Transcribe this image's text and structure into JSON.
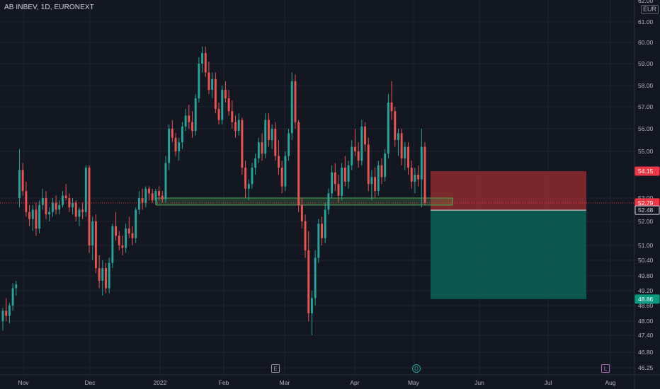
{
  "header": {
    "title": "AB INBEV, 1D, EURONEXT",
    "currency": "EUR"
  },
  "chart_data": {
    "type": "candlestick",
    "symbol": "AB INBEV",
    "interval": "1D",
    "exchange": "EURONEXT",
    "currency": "EUR",
    "grid": true,
    "y_ticks": [
      "61.00",
      "60.00",
      "59.00",
      "58.00",
      "57.00",
      "56.00",
      "55.00",
      "53.00",
      "52.00",
      "51.00",
      "50.40",
      "49.80",
      "49.20",
      "48.60",
      "48.00",
      "47.40",
      "46.80",
      "46.25"
    ],
    "x_ticks": [
      "Nov",
      "Dec",
      "2022",
      "Feb",
      "Mar",
      "Apr",
      "May",
      "Jun",
      "Jul",
      "Aug"
    ],
    "top_tick_partial": "62.00",
    "price_tags": [
      {
        "label": "54.15",
        "value": 54.15,
        "color": "#f23645"
      },
      {
        "label": "52.79",
        "value": 52.79,
        "color": "#f23645"
      },
      {
        "label": "52.48",
        "value": 52.48,
        "color": "#d1d4dc"
      },
      {
        "label": "48.86",
        "value": 48.86,
        "color": "#089981"
      }
    ],
    "support_zone": {
      "low": 52.7,
      "high": 53.0,
      "color": "#4caf50"
    },
    "position": {
      "entry": 52.48,
      "stop": 54.15,
      "target": 48.86,
      "stop_color": "#8e2a2e",
      "target_color": "#0c5e55"
    },
    "event_markers": [
      {
        "label": "E",
        "on": "Mar"
      },
      {
        "label": "D",
        "on": "May"
      },
      {
        "label": "L",
        "on": "Aug"
      }
    ],
    "candles": [
      {
        "o": 48.0,
        "h": 48.5,
        "l": 47.6,
        "c": 48.4
      },
      {
        "o": 48.4,
        "h": 48.9,
        "l": 48.0,
        "c": 48.2
      },
      {
        "o": 48.2,
        "h": 48.7,
        "l": 47.9,
        "c": 48.6
      },
      {
        "o": 48.6,
        "h": 49.5,
        "l": 48.4,
        "c": 49.3
      },
      {
        "o": 49.3,
        "h": 49.6,
        "l": 49.0,
        "c": 49.45
      },
      {
        "o": 53.0,
        "h": 55.1,
        "l": 52.6,
        "c": 54.2
      },
      {
        "o": 54.2,
        "h": 54.5,
        "l": 53.1,
        "c": 53.3
      },
      {
        "o": 53.3,
        "h": 53.7,
        "l": 52.2,
        "c": 52.4
      },
      {
        "o": 52.4,
        "h": 52.7,
        "l": 51.8,
        "c": 52.1
      },
      {
        "o": 52.1,
        "h": 52.7,
        "l": 51.6,
        "c": 52.5
      },
      {
        "o": 52.5,
        "h": 52.8,
        "l": 51.4,
        "c": 51.7
      },
      {
        "o": 51.7,
        "h": 52.9,
        "l": 51.5,
        "c": 52.7
      },
      {
        "o": 52.7,
        "h": 53.4,
        "l": 52.5,
        "c": 53.0
      },
      {
        "o": 53.0,
        "h": 53.3,
        "l": 52.1,
        "c": 52.3
      },
      {
        "o": 52.3,
        "h": 52.6,
        "l": 52.0,
        "c": 52.4
      },
      {
        "o": 52.4,
        "h": 53.0,
        "l": 52.2,
        "c": 52.8
      },
      {
        "o": 52.8,
        "h": 53.1,
        "l": 52.3,
        "c": 52.5
      },
      {
        "o": 52.5,
        "h": 52.9,
        "l": 52.3,
        "c": 52.7
      },
      {
        "o": 52.7,
        "h": 53.3,
        "l": 52.6,
        "c": 53.1
      },
      {
        "o": 53.1,
        "h": 53.6,
        "l": 52.9,
        "c": 53.0
      },
      {
        "o": 53.0,
        "h": 53.2,
        "l": 52.4,
        "c": 52.6
      },
      {
        "o": 52.6,
        "h": 53.0,
        "l": 52.3,
        "c": 52.8
      },
      {
        "o": 52.8,
        "h": 52.9,
        "l": 52.0,
        "c": 52.2
      },
      {
        "o": 52.2,
        "h": 52.6,
        "l": 51.8,
        "c": 52.5
      },
      {
        "o": 52.5,
        "h": 52.8,
        "l": 52.1,
        "c": 52.4
      },
      {
        "o": 52.4,
        "h": 54.4,
        "l": 52.2,
        "c": 54.3
      },
      {
        "o": 54.3,
        "h": 54.4,
        "l": 50.7,
        "c": 51.0
      },
      {
        "o": 51.0,
        "h": 52.2,
        "l": 50.4,
        "c": 52.0
      },
      {
        "o": 52.0,
        "h": 52.3,
        "l": 49.9,
        "c": 50.1
      },
      {
        "o": 50.1,
        "h": 50.6,
        "l": 49.3,
        "c": 49.6
      },
      {
        "o": 49.6,
        "h": 50.4,
        "l": 49.0,
        "c": 50.1
      },
      {
        "o": 50.1,
        "h": 50.3,
        "l": 49.1,
        "c": 49.3
      },
      {
        "o": 49.3,
        "h": 50.5,
        "l": 49.1,
        "c": 50.3
      },
      {
        "o": 50.3,
        "h": 51.9,
        "l": 50.1,
        "c": 51.8
      },
      {
        "o": 51.8,
        "h": 52.4,
        "l": 51.2,
        "c": 51.4
      },
      {
        "o": 51.4,
        "h": 51.6,
        "l": 50.8,
        "c": 51.0
      },
      {
        "o": 51.0,
        "h": 51.4,
        "l": 50.6,
        "c": 50.9
      },
      {
        "o": 50.9,
        "h": 51.9,
        "l": 50.7,
        "c": 51.7
      },
      {
        "o": 51.7,
        "h": 52.2,
        "l": 51.3,
        "c": 51.5
      },
      {
        "o": 51.5,
        "h": 51.8,
        "l": 51.0,
        "c": 51.3
      },
      {
        "o": 51.3,
        "h": 52.6,
        "l": 51.1,
        "c": 52.5
      },
      {
        "o": 52.5,
        "h": 53.3,
        "l": 52.3,
        "c": 53.0
      },
      {
        "o": 53.0,
        "h": 53.4,
        "l": 52.5,
        "c": 52.8
      },
      {
        "o": 52.8,
        "h": 53.5,
        "l": 52.6,
        "c": 53.4
      },
      {
        "o": 53.4,
        "h": 53.5,
        "l": 52.9,
        "c": 53.2
      },
      {
        "o": 53.2,
        "h": 53.4,
        "l": 52.8,
        "c": 52.9
      },
      {
        "o": 52.9,
        "h": 53.4,
        "l": 52.7,
        "c": 53.3
      },
      {
        "o": 53.3,
        "h": 53.5,
        "l": 52.9,
        "c": 53.1
      },
      {
        "o": 53.1,
        "h": 53.3,
        "l": 52.8,
        "c": 52.95
      },
      {
        "o": 52.95,
        "h": 54.8,
        "l": 52.8,
        "c": 54.5
      },
      {
        "o": 54.5,
        "h": 56.2,
        "l": 54.2,
        "c": 56.0
      },
      {
        "o": 56.0,
        "h": 56.4,
        "l": 55.4,
        "c": 55.6
      },
      {
        "o": 55.6,
        "h": 55.8,
        "l": 54.8,
        "c": 55.0
      },
      {
        "o": 55.0,
        "h": 55.6,
        "l": 54.6,
        "c": 55.4
      },
      {
        "o": 55.4,
        "h": 56.3,
        "l": 55.1,
        "c": 56.1
      },
      {
        "o": 56.1,
        "h": 56.9,
        "l": 55.9,
        "c": 56.6
      },
      {
        "o": 56.6,
        "h": 57.1,
        "l": 56.0,
        "c": 56.3
      },
      {
        "o": 56.3,
        "h": 56.8,
        "l": 55.6,
        "c": 55.9
      },
      {
        "o": 55.9,
        "h": 57.6,
        "l": 55.7,
        "c": 57.4
      },
      {
        "o": 57.4,
        "h": 59.3,
        "l": 57.2,
        "c": 59.0
      },
      {
        "o": 59.0,
        "h": 59.8,
        "l": 58.6,
        "c": 59.5
      },
      {
        "o": 59.5,
        "h": 59.8,
        "l": 58.4,
        "c": 58.6
      },
      {
        "o": 58.6,
        "h": 59.1,
        "l": 57.6,
        "c": 57.8
      },
      {
        "o": 57.8,
        "h": 58.6,
        "l": 57.4,
        "c": 58.3
      },
      {
        "o": 58.3,
        "h": 58.6,
        "l": 56.7,
        "c": 56.9
      },
      {
        "o": 56.9,
        "h": 57.2,
        "l": 56.2,
        "c": 56.4
      },
      {
        "o": 56.4,
        "h": 58.0,
        "l": 56.2,
        "c": 57.8
      },
      {
        "o": 57.8,
        "h": 58.2,
        "l": 57.2,
        "c": 57.4
      },
      {
        "o": 57.4,
        "h": 57.8,
        "l": 56.6,
        "c": 56.8
      },
      {
        "o": 56.8,
        "h": 57.3,
        "l": 56.0,
        "c": 56.3
      },
      {
        "o": 56.3,
        "h": 56.6,
        "l": 55.6,
        "c": 55.9
      },
      {
        "o": 55.9,
        "h": 56.7,
        "l": 55.7,
        "c": 56.4
      },
      {
        "o": 56.4,
        "h": 56.5,
        "l": 54.0,
        "c": 54.3
      },
      {
        "o": 54.3,
        "h": 54.6,
        "l": 53.0,
        "c": 53.4
      },
      {
        "o": 53.4,
        "h": 53.8,
        "l": 52.9,
        "c": 53.6
      },
      {
        "o": 53.6,
        "h": 54.5,
        "l": 53.4,
        "c": 54.3
      },
      {
        "o": 54.3,
        "h": 54.9,
        "l": 54.0,
        "c": 54.7
      },
      {
        "o": 54.7,
        "h": 55.6,
        "l": 54.5,
        "c": 55.4
      },
      {
        "o": 55.4,
        "h": 55.8,
        "l": 54.6,
        "c": 54.9
      },
      {
        "o": 54.9,
        "h": 56.7,
        "l": 54.7,
        "c": 56.4
      },
      {
        "o": 56.4,
        "h": 56.7,
        "l": 55.2,
        "c": 55.5
      },
      {
        "o": 55.5,
        "h": 56.2,
        "l": 55.1,
        "c": 56.0
      },
      {
        "o": 56.0,
        "h": 56.3,
        "l": 54.6,
        "c": 54.8
      },
      {
        "o": 54.8,
        "h": 55.5,
        "l": 54.0,
        "c": 54.3
      },
      {
        "o": 54.3,
        "h": 54.6,
        "l": 53.2,
        "c": 53.5
      },
      {
        "o": 53.5,
        "h": 55.0,
        "l": 53.3,
        "c": 54.8
      },
      {
        "o": 54.8,
        "h": 56.0,
        "l": 54.6,
        "c": 55.8
      },
      {
        "o": 55.8,
        "h": 58.6,
        "l": 55.5,
        "c": 58.2
      },
      {
        "o": 58.2,
        "h": 58.5,
        "l": 56.0,
        "c": 56.3
      },
      {
        "o": 56.3,
        "h": 56.4,
        "l": 52.4,
        "c": 52.7
      },
      {
        "o": 52.7,
        "h": 53.0,
        "l": 51.7,
        "c": 52.0
      },
      {
        "o": 52.0,
        "h": 52.3,
        "l": 50.5,
        "c": 50.8
      },
      {
        "o": 50.8,
        "h": 51.6,
        "l": 48.0,
        "c": 48.3
      },
      {
        "o": 48.3,
        "h": 49.2,
        "l": 47.4,
        "c": 48.9
      },
      {
        "o": 48.9,
        "h": 50.8,
        "l": 48.6,
        "c": 50.5
      },
      {
        "o": 50.5,
        "h": 52.1,
        "l": 50.3,
        "c": 51.9
      },
      {
        "o": 51.9,
        "h": 52.2,
        "l": 51.0,
        "c": 51.3
      },
      {
        "o": 51.3,
        "h": 52.8,
        "l": 51.1,
        "c": 52.5
      },
      {
        "o": 52.5,
        "h": 53.4,
        "l": 52.3,
        "c": 53.2
      },
      {
        "o": 53.2,
        "h": 54.4,
        "l": 53.0,
        "c": 54.1
      },
      {
        "o": 54.1,
        "h": 54.5,
        "l": 53.3,
        "c": 53.6
      },
      {
        "o": 53.6,
        "h": 54.0,
        "l": 52.8,
        "c": 53.1
      },
      {
        "o": 53.1,
        "h": 54.5,
        "l": 52.9,
        "c": 54.3
      },
      {
        "o": 54.3,
        "h": 54.8,
        "l": 53.5,
        "c": 53.7
      },
      {
        "o": 53.7,
        "h": 54.6,
        "l": 53.4,
        "c": 54.4
      },
      {
        "o": 54.4,
        "h": 55.5,
        "l": 54.2,
        "c": 55.2
      },
      {
        "o": 55.2,
        "h": 56.0,
        "l": 54.8,
        "c": 55.0
      },
      {
        "o": 55.0,
        "h": 55.4,
        "l": 54.3,
        "c": 54.6
      },
      {
        "o": 54.6,
        "h": 56.4,
        "l": 54.4,
        "c": 56.1
      },
      {
        "o": 56.1,
        "h": 56.3,
        "l": 55.0,
        "c": 55.3
      },
      {
        "o": 55.3,
        "h": 55.6,
        "l": 53.3,
        "c": 53.6
      },
      {
        "o": 53.6,
        "h": 54.2,
        "l": 52.9,
        "c": 53.9
      },
      {
        "o": 53.9,
        "h": 54.3,
        "l": 53.0,
        "c": 53.3
      },
      {
        "o": 53.3,
        "h": 54.6,
        "l": 53.1,
        "c": 54.4
      },
      {
        "o": 54.4,
        "h": 54.7,
        "l": 53.6,
        "c": 53.9
      },
      {
        "o": 53.9,
        "h": 55.1,
        "l": 53.7,
        "c": 54.9
      },
      {
        "o": 54.9,
        "h": 57.6,
        "l": 54.7,
        "c": 57.2
      },
      {
        "o": 57.2,
        "h": 58.2,
        "l": 56.4,
        "c": 56.8
      },
      {
        "o": 56.8,
        "h": 57.0,
        "l": 55.2,
        "c": 55.5
      },
      {
        "o": 55.5,
        "h": 56.0,
        "l": 54.8,
        "c": 55.8
      },
      {
        "o": 55.8,
        "h": 56.0,
        "l": 54.4,
        "c": 54.7
      },
      {
        "o": 54.7,
        "h": 55.4,
        "l": 54.2,
        "c": 55.2
      },
      {
        "o": 55.2,
        "h": 55.4,
        "l": 54.0,
        "c": 54.3
      },
      {
        "o": 54.3,
        "h": 54.6,
        "l": 53.4,
        "c": 53.7
      },
      {
        "o": 53.7,
        "h": 54.3,
        "l": 53.2,
        "c": 54.0
      },
      {
        "o": 54.0,
        "h": 54.4,
        "l": 53.5,
        "c": 53.8
      },
      {
        "o": 53.8,
        "h": 56.0,
        "l": 52.6,
        "c": 55.2
      },
      {
        "o": 55.2,
        "h": 55.4,
        "l": 52.7,
        "c": 52.79
      }
    ]
  }
}
